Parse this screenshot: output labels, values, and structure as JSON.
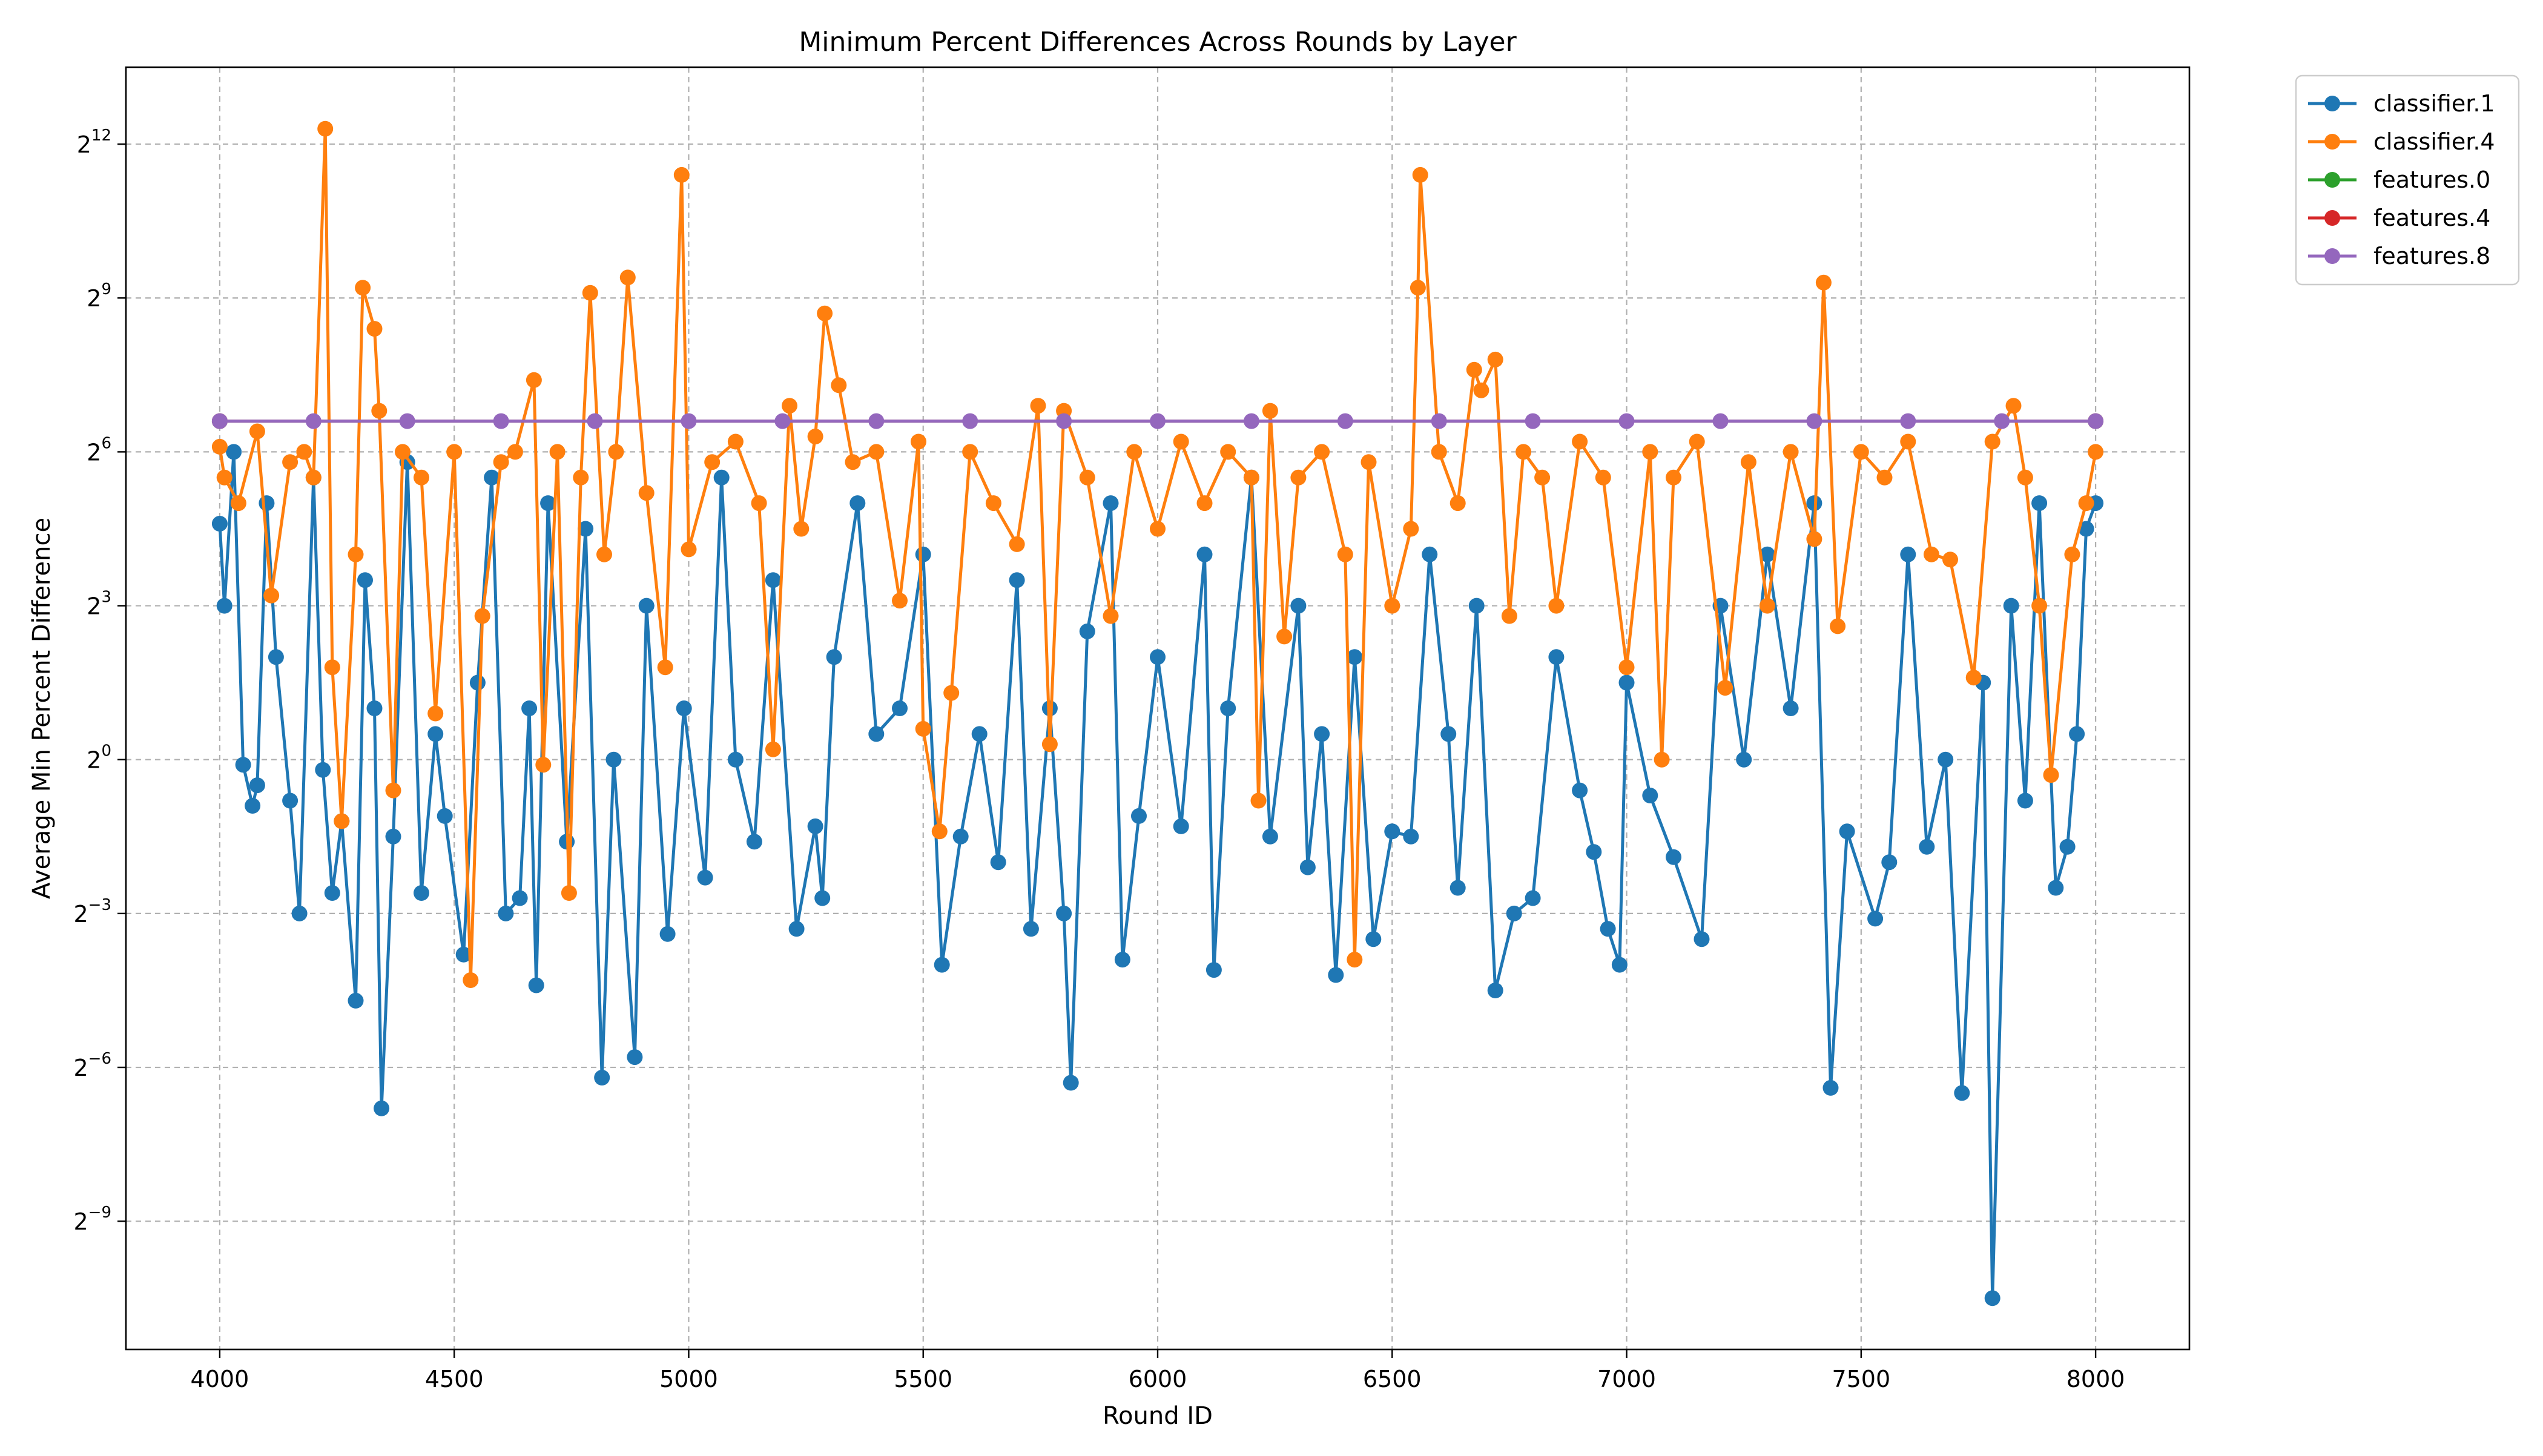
{
  "chart_data": {
    "type": "line",
    "title": "Minimum Percent Differences Across Rounds by Layer",
    "xlabel": "Round ID",
    "ylabel": "Average Min Percent Difference",
    "xlim": [
      3800,
      8200
    ],
    "ylim_log2": [
      -11.5,
      13.5
    ],
    "yscale": "log2",
    "grid": true,
    "legend_position": "outside-top-right",
    "x_ticks": [
      4000,
      4500,
      5000,
      5500,
      6000,
      6500,
      7000,
      7500,
      8000
    ],
    "y_ticks": [
      {
        "base": "2",
        "exp": "−9",
        "log2": -9
      },
      {
        "base": "2",
        "exp": "−6",
        "log2": -6
      },
      {
        "base": "2",
        "exp": "−3",
        "log2": -3
      },
      {
        "base": "2",
        "exp": "0",
        "log2": 0
      },
      {
        "base": "2",
        "exp": "3",
        "log2": 3
      },
      {
        "base": "2",
        "exp": "6",
        "log2": 6
      },
      {
        "base": "2",
        "exp": "9",
        "log2": 9
      },
      {
        "base": "2",
        "exp": "12",
        "log2": 12
      }
    ],
    "series": [
      {
        "name": "classifier.1",
        "color": "#1f77b4",
        "points": [
          [
            4000,
            4.6
          ],
          [
            4010,
            3.0
          ],
          [
            4030,
            6.0
          ],
          [
            4050,
            -0.1
          ],
          [
            4070,
            -0.9
          ],
          [
            4080,
            -0.5
          ],
          [
            4100,
            5.0
          ],
          [
            4120,
            2.0
          ],
          [
            4150,
            -0.8
          ],
          [
            4170,
            -3.0
          ],
          [
            4200,
            5.5
          ],
          [
            4220,
            -0.2
          ],
          [
            4240,
            -2.6
          ],
          [
            4260,
            -1.2
          ],
          [
            4290,
            -4.7
          ],
          [
            4310,
            3.5
          ],
          [
            4330,
            1.0
          ],
          [
            4345,
            -6.8
          ],
          [
            4370,
            -1.5
          ],
          [
            4400,
            5.8
          ],
          [
            4430,
            -2.6
          ],
          [
            4460,
            0.5
          ],
          [
            4480,
            -1.1
          ],
          [
            4520,
            -3.8
          ],
          [
            4550,
            1.5
          ],
          [
            4580,
            5.5
          ],
          [
            4610,
            -3.0
          ],
          [
            4640,
            -2.7
          ],
          [
            4660,
            1.0
          ],
          [
            4675,
            -4.4
          ],
          [
            4700,
            5.0
          ],
          [
            4740,
            -1.6
          ],
          [
            4780,
            4.5
          ],
          [
            4815,
            -6.2
          ],
          [
            4840,
            0.0
          ],
          [
            4885,
            -5.8
          ],
          [
            4910,
            3.0
          ],
          [
            4955,
            -3.4
          ],
          [
            4990,
            1.0
          ],
          [
            5035,
            -2.3
          ],
          [
            5070,
            5.5
          ],
          [
            5100,
            0.0
          ],
          [
            5140,
            -1.6
          ],
          [
            5180,
            3.5
          ],
          [
            5230,
            -3.3
          ],
          [
            5270,
            -1.3
          ],
          [
            5285,
            -2.7
          ],
          [
            5310,
            2.0
          ],
          [
            5360,
            5.0
          ],
          [
            5400,
            0.5
          ],
          [
            5450,
            1.0
          ],
          [
            5500,
            4.0
          ],
          [
            5540,
            -4.0
          ],
          [
            5580,
            -1.5
          ],
          [
            5620,
            0.5
          ],
          [
            5660,
            -2.0
          ],
          [
            5700,
            3.5
          ],
          [
            5730,
            -3.3
          ],
          [
            5770,
            1.0
          ],
          [
            5800,
            -3.0
          ],
          [
            5815,
            -6.3
          ],
          [
            5850,
            2.5
          ],
          [
            5900,
            5.0
          ],
          [
            5925,
            -3.9
          ],
          [
            5960,
            -1.1
          ],
          [
            6000,
            2.0
          ],
          [
            6050,
            -1.3
          ],
          [
            6100,
            4.0
          ],
          [
            6120,
            -4.1
          ],
          [
            6150,
            1.0
          ],
          [
            6200,
            5.5
          ],
          [
            6240,
            -1.5
          ],
          [
            6300,
            3.0
          ],
          [
            6320,
            -2.1
          ],
          [
            6350,
            0.5
          ],
          [
            6380,
            -4.2
          ],
          [
            6420,
            2.0
          ],
          [
            6460,
            -3.5
          ],
          [
            6500,
            -1.4
          ],
          [
            6540,
            -1.5
          ],
          [
            6580,
            4.0
          ],
          [
            6620,
            0.5
          ],
          [
            6640,
            -2.5
          ],
          [
            6680,
            3.0
          ],
          [
            6720,
            -4.5
          ],
          [
            6760,
            -3.0
          ],
          [
            6800,
            -2.7
          ],
          [
            6850,
            2.0
          ],
          [
            6900,
            -0.6
          ],
          [
            6930,
            -1.8
          ],
          [
            6960,
            -3.3
          ],
          [
            6985,
            -4.0
          ],
          [
            7000,
            1.5
          ],
          [
            7050,
            -0.7
          ],
          [
            7100,
            -1.9
          ],
          [
            7160,
            -3.5
          ],
          [
            7200,
            3.0
          ],
          [
            7250,
            0.0
          ],
          [
            7300,
            4.0
          ],
          [
            7350,
            1.0
          ],
          [
            7400,
            5.0
          ],
          [
            7435,
            -6.4
          ],
          [
            7470,
            -1.4
          ],
          [
            7530,
            -3.1
          ],
          [
            7560,
            -2.0
          ],
          [
            7600,
            4.0
          ],
          [
            7640,
            -1.7
          ],
          [
            7680,
            0.0
          ],
          [
            7715,
            -6.5
          ],
          [
            7760,
            1.5
          ],
          [
            7780,
            -10.5
          ],
          [
            7820,
            3.0
          ],
          [
            7850,
            -0.8
          ],
          [
            7880,
            5.0
          ],
          [
            7915,
            -2.5
          ],
          [
            7940,
            -1.7
          ],
          [
            7960,
            0.5
          ],
          [
            7980,
            4.5
          ],
          [
            8000,
            5.0
          ]
        ]
      },
      {
        "name": "classifier.4",
        "color": "#ff7f0e",
        "points": [
          [
            4000,
            6.1
          ],
          [
            4010,
            5.5
          ],
          [
            4040,
            5.0
          ],
          [
            4080,
            6.4
          ],
          [
            4110,
            3.2
          ],
          [
            4150,
            5.8
          ],
          [
            4180,
            6.0
          ],
          [
            4200,
            5.5
          ],
          [
            4225,
            12.3
          ],
          [
            4240,
            1.8
          ],
          [
            4260,
            -1.2
          ],
          [
            4290,
            4.0
          ],
          [
            4305,
            9.2
          ],
          [
            4330,
            8.4
          ],
          [
            4340,
            6.8
          ],
          [
            4370,
            -0.6
          ],
          [
            4390,
            6.0
          ],
          [
            4430,
            5.5
          ],
          [
            4460,
            0.9
          ],
          [
            4500,
            6.0
          ],
          [
            4535,
            -4.3
          ],
          [
            4560,
            2.8
          ],
          [
            4600,
            5.8
          ],
          [
            4630,
            6.0
          ],
          [
            4670,
            7.4
          ],
          [
            4690,
            -0.1
          ],
          [
            4720,
            6.0
          ],
          [
            4745,
            -2.6
          ],
          [
            4770,
            5.5
          ],
          [
            4790,
            9.1
          ],
          [
            4820,
            4.0
          ],
          [
            4845,
            6.0
          ],
          [
            4870,
            9.4
          ],
          [
            4910,
            5.2
          ],
          [
            4950,
            1.8
          ],
          [
            4985,
            11.4
          ],
          [
            5000,
            4.1
          ],
          [
            5050,
            5.8
          ],
          [
            5100,
            6.2
          ],
          [
            5150,
            5.0
          ],
          [
            5180,
            0.2
          ],
          [
            5215,
            6.9
          ],
          [
            5240,
            4.5
          ],
          [
            5270,
            6.3
          ],
          [
            5290,
            8.7
          ],
          [
            5320,
            7.3
          ],
          [
            5350,
            5.8
          ],
          [
            5400,
            6.0
          ],
          [
            5450,
            3.1
          ],
          [
            5490,
            6.2
          ],
          [
            5500,
            0.6
          ],
          [
            5535,
            -1.4
          ],
          [
            5560,
            1.3
          ],
          [
            5600,
            6.0
          ],
          [
            5650,
            5.0
          ],
          [
            5700,
            4.2
          ],
          [
            5745,
            6.9
          ],
          [
            5770,
            0.3
          ],
          [
            5800,
            6.8
          ],
          [
            5850,
            5.5
          ],
          [
            5900,
            2.8
          ],
          [
            5950,
            6.0
          ],
          [
            6000,
            4.5
          ],
          [
            6050,
            6.2
          ],
          [
            6100,
            5.0
          ],
          [
            6150,
            6.0
          ],
          [
            6200,
            5.5
          ],
          [
            6215,
            -0.8
          ],
          [
            6240,
            6.8
          ],
          [
            6270,
            2.4
          ],
          [
            6300,
            5.5
          ],
          [
            6350,
            6.0
          ],
          [
            6400,
            4.0
          ],
          [
            6420,
            -3.9
          ],
          [
            6450,
            5.8
          ],
          [
            6500,
            3.0
          ],
          [
            6540,
            4.5
          ],
          [
            6555,
            9.2
          ],
          [
            6560,
            11.4
          ],
          [
            6600,
            6.0
          ],
          [
            6640,
            5.0
          ],
          [
            6675,
            7.6
          ],
          [
            6690,
            7.2
          ],
          [
            6720,
            7.8
          ],
          [
            6750,
            2.8
          ],
          [
            6780,
            6.0
          ],
          [
            6820,
            5.5
          ],
          [
            6850,
            3.0
          ],
          [
            6900,
            6.2
          ],
          [
            6950,
            5.5
          ],
          [
            7000,
            1.8
          ],
          [
            7050,
            6.0
          ],
          [
            7075,
            0.0
          ],
          [
            7100,
            5.5
          ],
          [
            7150,
            6.2
          ],
          [
            7210,
            1.4
          ],
          [
            7260,
            5.8
          ],
          [
            7300,
            3.0
          ],
          [
            7350,
            6.0
          ],
          [
            7400,
            4.3
          ],
          [
            7420,
            9.3
          ],
          [
            7450,
            2.6
          ],
          [
            7500,
            6.0
          ],
          [
            7550,
            5.5
          ],
          [
            7600,
            6.2
          ],
          [
            7650,
            4.0
          ],
          [
            7690,
            3.9
          ],
          [
            7740,
            1.6
          ],
          [
            7780,
            6.2
          ],
          [
            7825,
            6.9
          ],
          [
            7850,
            5.5
          ],
          [
            7880,
            3.0
          ],
          [
            7905,
            -0.3
          ],
          [
            7950,
            4.0
          ],
          [
            7980,
            5.0
          ],
          [
            8000,
            6.0
          ]
        ]
      },
      {
        "name": "features.0",
        "color": "#2ca02c",
        "points": [
          [
            4000,
            6.6
          ],
          [
            8000,
            6.6
          ]
        ]
      },
      {
        "name": "features.4",
        "color": "#d62728",
        "points": [
          [
            4000,
            6.6
          ],
          [
            8000,
            6.6
          ]
        ]
      },
      {
        "name": "features.8",
        "color": "#9467bd",
        "points": [
          [
            4000,
            6.6
          ],
          [
            4200,
            6.6
          ],
          [
            4400,
            6.6
          ],
          [
            4600,
            6.6
          ],
          [
            4800,
            6.6
          ],
          [
            5000,
            6.6
          ],
          [
            5200,
            6.6
          ],
          [
            5400,
            6.6
          ],
          [
            5600,
            6.6
          ],
          [
            5800,
            6.6
          ],
          [
            6000,
            6.6
          ],
          [
            6200,
            6.6
          ],
          [
            6400,
            6.6
          ],
          [
            6600,
            6.6
          ],
          [
            6800,
            6.6
          ],
          [
            7000,
            6.6
          ],
          [
            7200,
            6.6
          ],
          [
            7400,
            6.6
          ],
          [
            7600,
            6.6
          ],
          [
            7800,
            6.6
          ],
          [
            8000,
            6.6
          ]
        ]
      }
    ]
  }
}
